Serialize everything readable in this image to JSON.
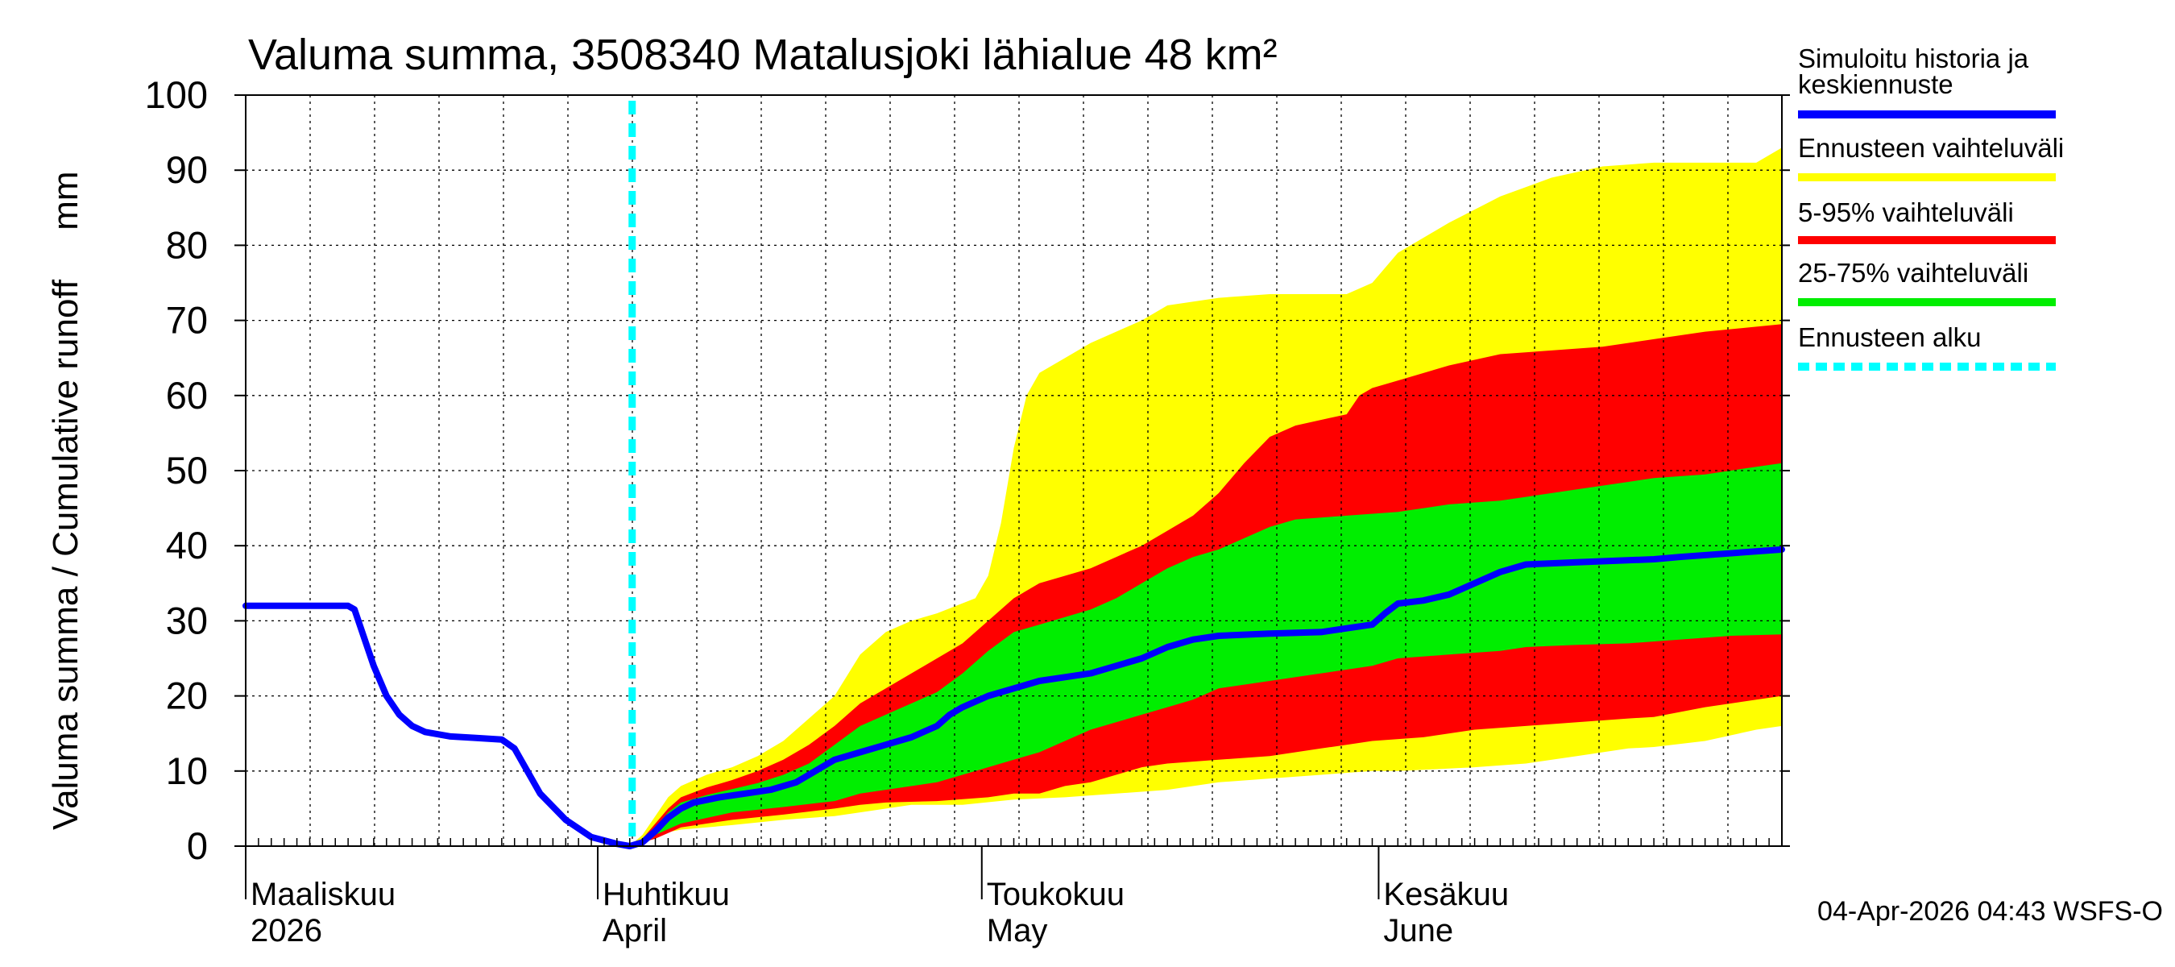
{
  "chart_data": {
    "type": "area",
    "title": "Valuma summa, 3508340 Matalusjoki lähialue 48 km²",
    "ylabel": "Valuma summa / Cumulative runoff     mm",
    "ylim": [
      0,
      100
    ],
    "yticks": [
      "0",
      "10",
      "20",
      "30",
      "40",
      "50",
      "60",
      "70",
      "80",
      "90",
      "100"
    ],
    "x_range_days": [
      0,
      120
    ],
    "months": [
      {
        "day": 0,
        "fi": "Maaliskuu",
        "en": "2026"
      },
      {
        "day": 27.5,
        "fi": "Huhtikuu",
        "en": "April"
      },
      {
        "day": 57.5,
        "fi": "Toukokuu",
        "en": "May"
      },
      {
        "day": 88.5,
        "fi": "Kesäkuu",
        "en": "June"
      }
    ],
    "forecast_start_day": 30,
    "colors": {
      "history": "#0000ff",
      "yellow": "#ffff00",
      "red": "#ff0000",
      "green": "#00ee00",
      "forecast_start": "#00ffff",
      "grid": "#000000"
    },
    "series": [
      {
        "name": "Simuloitu historia ja keskiennuste",
        "values": [
          [
            0,
            32
          ],
          [
            8,
            32
          ],
          [
            8.5,
            31.5
          ],
          [
            10,
            24
          ],
          [
            11,
            20
          ],
          [
            12,
            17.5
          ],
          [
            13,
            16
          ],
          [
            14,
            15.2
          ],
          [
            16,
            14.6
          ],
          [
            18,
            14.4
          ],
          [
            20,
            14.2
          ],
          [
            21,
            13
          ],
          [
            22,
            10
          ],
          [
            23,
            7
          ],
          [
            25,
            3.5
          ],
          [
            27,
            1.2
          ],
          [
            29,
            0.3
          ],
          [
            30,
            0
          ],
          [
            31,
            0.5
          ],
          [
            32,
            2
          ],
          [
            33,
            3.8
          ],
          [
            34,
            5
          ],
          [
            35,
            5.8
          ],
          [
            37,
            6.5
          ],
          [
            39,
            7
          ],
          [
            41,
            7.5
          ],
          [
            43,
            8.5
          ],
          [
            45,
            10.5
          ],
          [
            46,
            11.5
          ],
          [
            48,
            12.5
          ],
          [
            50,
            13.5
          ],
          [
            52,
            14.5
          ],
          [
            54,
            16
          ],
          [
            55,
            17.5
          ],
          [
            56,
            18.5
          ],
          [
            58,
            20
          ],
          [
            60,
            21
          ],
          [
            62,
            22
          ],
          [
            64,
            22.5
          ],
          [
            66,
            23
          ],
          [
            68,
            24
          ],
          [
            70,
            25
          ],
          [
            72,
            26.5
          ],
          [
            74,
            27.5
          ],
          [
            76,
            28
          ],
          [
            80,
            28.3
          ],
          [
            84,
            28.5
          ],
          [
            86,
            29
          ],
          [
            88,
            29.5
          ],
          [
            89,
            31
          ],
          [
            90,
            32.3
          ],
          [
            92,
            32.7
          ],
          [
            94,
            33.5
          ],
          [
            96,
            35
          ],
          [
            98,
            36.5
          ],
          [
            100,
            37.5
          ],
          [
            104,
            37.8
          ],
          [
            110,
            38.2
          ],
          [
            112,
            38.5
          ],
          [
            120,
            39.5
          ]
        ]
      },
      {
        "name": "Ennusteen vaihteluväli",
        "upper": [
          [
            30,
            0
          ],
          [
            31,
            1.5
          ],
          [
            32,
            4
          ],
          [
            33,
            6.5
          ],
          [
            34,
            8
          ],
          [
            36,
            9.5
          ],
          [
            38,
            10.5
          ],
          [
            40,
            12
          ],
          [
            42,
            14
          ],
          [
            44,
            17
          ],
          [
            46,
            20
          ],
          [
            48,
            25.5
          ],
          [
            50,
            28.5
          ],
          [
            52,
            30
          ],
          [
            54,
            31
          ],
          [
            57,
            33
          ],
          [
            58,
            36
          ],
          [
            59,
            43
          ],
          [
            60,
            53
          ],
          [
            61,
            60
          ],
          [
            62,
            63
          ],
          [
            64,
            65
          ],
          [
            66,
            67
          ],
          [
            68,
            68.5
          ],
          [
            70,
            70
          ],
          [
            72,
            72
          ],
          [
            76,
            73
          ],
          [
            80,
            73.5
          ],
          [
            86,
            73.5
          ],
          [
            88,
            75
          ],
          [
            90,
            79
          ],
          [
            94,
            83
          ],
          [
            98,
            86.5
          ],
          [
            102,
            89
          ],
          [
            106,
            90.5
          ],
          [
            110,
            91
          ],
          [
            118,
            91
          ],
          [
            120,
            93
          ]
        ],
        "lower": [
          [
            30,
            0
          ],
          [
            32,
            1.5
          ],
          [
            34,
            2.2
          ],
          [
            38,
            2.8
          ],
          [
            42,
            3.5
          ],
          [
            46,
            4
          ],
          [
            48,
            4.5
          ],
          [
            52,
            5.5
          ],
          [
            56,
            5.5
          ],
          [
            60,
            6.2
          ],
          [
            64,
            6.5
          ],
          [
            68,
            7
          ],
          [
            72,
            7.5
          ],
          [
            76,
            8.5
          ],
          [
            80,
            9
          ],
          [
            84,
            9.5
          ],
          [
            88,
            10
          ],
          [
            90,
            10
          ],
          [
            96,
            10.5
          ],
          [
            100,
            11
          ],
          [
            104,
            12
          ],
          [
            108,
            13
          ],
          [
            110,
            13.2
          ],
          [
            114,
            14
          ],
          [
            118,
            15.5
          ],
          [
            120,
            16
          ]
        ]
      },
      {
        "name": "5-95% vaihteluväli",
        "upper": [
          [
            30,
            0
          ],
          [
            31,
            1
          ],
          [
            32,
            3
          ],
          [
            33,
            5
          ],
          [
            34,
            6.5
          ],
          [
            36,
            7.8
          ],
          [
            38,
            8.8
          ],
          [
            40,
            10
          ],
          [
            42,
            11.5
          ],
          [
            44,
            13.5
          ],
          [
            46,
            16
          ],
          [
            48,
            19
          ],
          [
            50,
            21
          ],
          [
            52,
            23
          ],
          [
            54,
            25
          ],
          [
            56,
            27
          ],
          [
            58,
            30
          ],
          [
            60,
            33
          ],
          [
            62,
            35
          ],
          [
            64,
            36
          ],
          [
            66,
            37
          ],
          [
            68,
            38.5
          ],
          [
            70,
            40
          ],
          [
            72,
            42
          ],
          [
            74,
            44
          ],
          [
            76,
            47
          ],
          [
            78,
            51
          ],
          [
            80,
            54.5
          ],
          [
            82,
            56
          ],
          [
            86,
            57.5
          ],
          [
            87,
            60
          ],
          [
            88,
            61
          ],
          [
            90,
            62
          ],
          [
            94,
            64
          ],
          [
            98,
            65.5
          ],
          [
            102,
            66
          ],
          [
            106,
            66.5
          ],
          [
            110,
            67.5
          ],
          [
            114,
            68.5
          ],
          [
            120,
            69.5
          ]
        ],
        "lower": [
          [
            30,
            0
          ],
          [
            32,
            1
          ],
          [
            34,
            2.5
          ],
          [
            38,
            3.5
          ],
          [
            42,
            4.2
          ],
          [
            46,
            5
          ],
          [
            48,
            5.5
          ],
          [
            50,
            5.8
          ],
          [
            54,
            6
          ],
          [
            58,
            6.5
          ],
          [
            60,
            7
          ],
          [
            62,
            7
          ],
          [
            64,
            8
          ],
          [
            66,
            8.5
          ],
          [
            68,
            9.5
          ],
          [
            70,
            10.5
          ],
          [
            72,
            11
          ],
          [
            76,
            11.5
          ],
          [
            80,
            12
          ],
          [
            84,
            13
          ],
          [
            86,
            13.5
          ],
          [
            88,
            14
          ],
          [
            92,
            14.5
          ],
          [
            96,
            15.5
          ],
          [
            100,
            16
          ],
          [
            104,
            16.5
          ],
          [
            108,
            17
          ],
          [
            110,
            17.2
          ],
          [
            114,
            18.5
          ],
          [
            118,
            19.5
          ],
          [
            120,
            20
          ]
        ]
      },
      {
        "name": "25-75% vaihteluväli",
        "upper": [
          [
            30,
            0
          ],
          [
            31,
            0.8
          ],
          [
            32,
            2.5
          ],
          [
            33,
            4.5
          ],
          [
            34,
            5.8
          ],
          [
            36,
            6.8
          ],
          [
            38,
            7.6
          ],
          [
            40,
            8.4
          ],
          [
            42,
            9.5
          ],
          [
            44,
            11
          ],
          [
            46,
            13.5
          ],
          [
            48,
            16
          ],
          [
            50,
            17.5
          ],
          [
            52,
            19
          ],
          [
            54,
            20.5
          ],
          [
            56,
            23
          ],
          [
            58,
            26
          ],
          [
            60,
            28.5
          ],
          [
            62,
            29.5
          ],
          [
            64,
            30.5
          ],
          [
            66,
            31.5
          ],
          [
            68,
            33
          ],
          [
            70,
            35
          ],
          [
            72,
            37
          ],
          [
            74,
            38.5
          ],
          [
            76,
            39.5
          ],
          [
            78,
            41
          ],
          [
            80,
            42.5
          ],
          [
            82,
            43.5
          ],
          [
            86,
            44
          ],
          [
            90,
            44.5
          ],
          [
            94,
            45.5
          ],
          [
            98,
            46
          ],
          [
            100,
            46.5
          ],
          [
            104,
            47.5
          ],
          [
            108,
            48.5
          ],
          [
            110,
            49
          ],
          [
            114,
            49.5
          ],
          [
            118,
            50.5
          ],
          [
            120,
            51
          ]
        ],
        "lower": [
          [
            30,
            0
          ],
          [
            32,
            1.5
          ],
          [
            34,
            3
          ],
          [
            38,
            4.5
          ],
          [
            42,
            5.2
          ],
          [
            46,
            6
          ],
          [
            48,
            7
          ],
          [
            50,
            7.5
          ],
          [
            54,
            8.5
          ],
          [
            58,
            10.5
          ],
          [
            60,
            11.5
          ],
          [
            62,
            12.5
          ],
          [
            64,
            14
          ],
          [
            66,
            15.5
          ],
          [
            68,
            16.5
          ],
          [
            70,
            17.5
          ],
          [
            72,
            18.5
          ],
          [
            74,
            19.5
          ],
          [
            76,
            21
          ],
          [
            80,
            22
          ],
          [
            84,
            23
          ],
          [
            88,
            24
          ],
          [
            90,
            25
          ],
          [
            94,
            25.5
          ],
          [
            98,
            26
          ],
          [
            100,
            26.5
          ],
          [
            104,
            26.8
          ],
          [
            108,
            27
          ],
          [
            112,
            27.5
          ],
          [
            116,
            28
          ],
          [
            120,
            28.2
          ]
        ]
      },
      {
        "name": "Ennusteen alku",
        "x": 30
      }
    ]
  },
  "legend": [
    {
      "label": "Simuloitu historia ja keskiennuste",
      "line1": "Simuloitu historia ja",
      "line2": "keskiennuste",
      "color": "#0000ff",
      "style": "solid"
    },
    {
      "label": "Ennusteen vaihteluväli",
      "color": "#ffff00",
      "style": "solid"
    },
    {
      "label": "5-95% vaihteluväli",
      "color": "#ff0000",
      "style": "solid"
    },
    {
      "label": "25-75% vaihteluväli",
      "color": "#00ee00",
      "style": "solid"
    },
    {
      "label": "Ennusteen alku",
      "color": "#00ffff",
      "style": "dashed"
    }
  ],
  "footer": "04-Apr-2026 04:43 WSFS-O"
}
